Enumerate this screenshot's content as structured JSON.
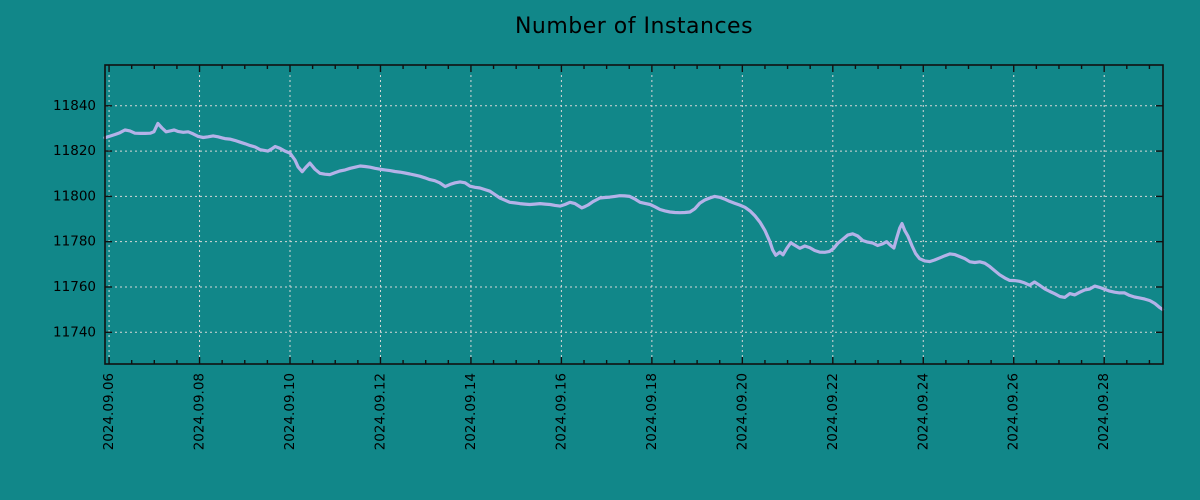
{
  "title": "Number of Instances",
  "colors": {
    "background": "#118789",
    "line": "#b4b2e8",
    "grid": "#d8d8d8",
    "axis": "#101010",
    "text": "#000000"
  },
  "chart_data": {
    "type": "line",
    "title": "Number of Instances",
    "xlabel": "",
    "ylabel": "",
    "grid": true,
    "legend": null,
    "x_unit": "days since 2024-09-06 00:00",
    "x_tick_days": [
      0,
      2,
      4,
      6,
      8,
      10,
      12,
      14,
      16,
      18,
      20,
      22
    ],
    "x_tick_labels": [
      "2024.09.06",
      "2024.09.08",
      "2024.09.10",
      "2024.09.12",
      "2024.09.14",
      "2024.09.16",
      "2024.09.18",
      "2024.09.20",
      "2024.09.22",
      "2024.09.24",
      "2024.09.26",
      "2024.09.28"
    ],
    "x_minor_step_days": 0.5,
    "y_ticks": [
      11740,
      11760,
      11780,
      11800,
      11820,
      11840
    ],
    "xlim_days": [
      -0.09,
      23.3
    ],
    "ylim": [
      11726,
      11858
    ],
    "series": [
      {
        "name": "instances",
        "points": [
          [
            -0.09,
            11825.9
          ],
          [
            0.02,
            11826.6
          ],
          [
            0.13,
            11827.3
          ],
          [
            0.24,
            11828.1
          ],
          [
            0.35,
            11829.3
          ],
          [
            0.46,
            11828.9
          ],
          [
            0.57,
            11827.9
          ],
          [
            0.69,
            11827.8
          ],
          [
            0.8,
            11827.8
          ],
          [
            0.91,
            11827.9
          ],
          [
            0.99,
            11828.5
          ],
          [
            1.08,
            11832.2
          ],
          [
            1.17,
            11830.2
          ],
          [
            1.26,
            11828.5
          ],
          [
            1.35,
            11828.9
          ],
          [
            1.44,
            11829.3
          ],
          [
            1.52,
            11828.7
          ],
          [
            1.64,
            11828.3
          ],
          [
            1.75,
            11828.5
          ],
          [
            1.86,
            11827.6
          ],
          [
            1.97,
            11826.5
          ],
          [
            2.08,
            11826.0
          ],
          [
            2.19,
            11826.3
          ],
          [
            2.3,
            11826.7
          ],
          [
            2.41,
            11826.3
          ],
          [
            2.5,
            11825.8
          ],
          [
            2.56,
            11825.5
          ],
          [
            2.67,
            11825.3
          ],
          [
            2.78,
            11824.7
          ],
          [
            2.9,
            11823.9
          ],
          [
            3.01,
            11823.2
          ],
          [
            3.12,
            11822.4
          ],
          [
            3.23,
            11821.8
          ],
          [
            3.34,
            11820.6
          ],
          [
            3.45,
            11820.2
          ],
          [
            3.51,
            11820.0
          ],
          [
            3.6,
            11821.0
          ],
          [
            3.67,
            11822.0
          ],
          [
            3.78,
            11821.2
          ],
          [
            3.89,
            11820.0
          ],
          [
            4.0,
            11819.1
          ],
          [
            4.11,
            11816.0
          ],
          [
            4.18,
            11813.0
          ],
          [
            4.27,
            11810.9
          ],
          [
            4.35,
            11812.8
          ],
          [
            4.44,
            11814.7
          ],
          [
            4.55,
            11812.0
          ],
          [
            4.66,
            11810.2
          ],
          [
            4.77,
            11809.8
          ],
          [
            4.88,
            11809.6
          ],
          [
            4.99,
            11810.4
          ],
          [
            5.1,
            11811.2
          ],
          [
            5.22,
            11811.7
          ],
          [
            5.33,
            11812.4
          ],
          [
            5.44,
            11812.9
          ],
          [
            5.55,
            11813.4
          ],
          [
            5.66,
            11813.2
          ],
          [
            5.77,
            11812.9
          ],
          [
            5.88,
            11812.4
          ],
          [
            5.99,
            11812.0
          ],
          [
            6.1,
            11811.7
          ],
          [
            6.21,
            11811.4
          ],
          [
            6.32,
            11811.0
          ],
          [
            6.43,
            11810.7
          ],
          [
            6.54,
            11810.3
          ],
          [
            6.65,
            11809.9
          ],
          [
            6.76,
            11809.4
          ],
          [
            6.87,
            11808.9
          ],
          [
            6.98,
            11808.2
          ],
          [
            7.09,
            11807.4
          ],
          [
            7.2,
            11806.9
          ],
          [
            7.31,
            11806.0
          ],
          [
            7.43,
            11804.3
          ],
          [
            7.54,
            11805.3
          ],
          [
            7.65,
            11806.0
          ],
          [
            7.76,
            11806.4
          ],
          [
            7.87,
            11806.0
          ],
          [
            7.98,
            11804.5
          ],
          [
            8.09,
            11804.0
          ],
          [
            8.2,
            11803.7
          ],
          [
            8.31,
            11803.0
          ],
          [
            8.42,
            11802.3
          ],
          [
            8.53,
            11800.8
          ],
          [
            8.64,
            11799.3
          ],
          [
            8.75,
            11798.3
          ],
          [
            8.86,
            11797.4
          ],
          [
            8.97,
            11797.1
          ],
          [
            9.08,
            11796.8
          ],
          [
            9.19,
            11796.6
          ],
          [
            9.3,
            11796.4
          ],
          [
            9.41,
            11796.6
          ],
          [
            9.53,
            11796.8
          ],
          [
            9.64,
            11796.6
          ],
          [
            9.75,
            11796.4
          ],
          [
            9.86,
            11796.0
          ],
          [
            9.97,
            11795.7
          ],
          [
            10.08,
            11796.4
          ],
          [
            10.19,
            11797.4
          ],
          [
            10.3,
            11796.8
          ],
          [
            10.45,
            11794.9
          ],
          [
            10.52,
            11795.5
          ],
          [
            10.59,
            11796.2
          ],
          [
            10.7,
            11797.7
          ],
          [
            10.79,
            11798.6
          ],
          [
            10.85,
            11799.3
          ],
          [
            10.96,
            11799.5
          ],
          [
            11.07,
            11799.7
          ],
          [
            11.18,
            11800.0
          ],
          [
            11.29,
            11800.3
          ],
          [
            11.4,
            11800.2
          ],
          [
            11.51,
            11800.0
          ],
          [
            11.62,
            11798.9
          ],
          [
            11.74,
            11797.4
          ],
          [
            11.85,
            11796.9
          ],
          [
            11.96,
            11796.4
          ],
          [
            12.07,
            11795.4
          ],
          [
            12.18,
            11794.2
          ],
          [
            12.29,
            11793.6
          ],
          [
            12.4,
            11793.1
          ],
          [
            12.51,
            11792.9
          ],
          [
            12.62,
            11792.8
          ],
          [
            12.73,
            11792.9
          ],
          [
            12.84,
            11793.1
          ],
          [
            12.95,
            11794.5
          ],
          [
            13.06,
            11797.0
          ],
          [
            13.17,
            11798.4
          ],
          [
            13.28,
            11799.3
          ],
          [
            13.39,
            11800.0
          ],
          [
            13.5,
            11799.6
          ],
          [
            13.61,
            11798.8
          ],
          [
            13.72,
            11797.8
          ],
          [
            13.83,
            11797.0
          ],
          [
            13.94,
            11796.2
          ],
          [
            14.06,
            11795.2
          ],
          [
            14.17,
            11793.6
          ],
          [
            14.28,
            11791.4
          ],
          [
            14.39,
            11788.6
          ],
          [
            14.5,
            11785.0
          ],
          [
            14.61,
            11780.0
          ],
          [
            14.67,
            11776.4
          ],
          [
            14.74,
            11774.0
          ],
          [
            14.83,
            11775.4
          ],
          [
            14.9,
            11774.2
          ],
          [
            14.98,
            11777.0
          ],
          [
            15.07,
            11779.5
          ],
          [
            15.16,
            11778.4
          ],
          [
            15.27,
            11777.1
          ],
          [
            15.38,
            11778.1
          ],
          [
            15.49,
            11777.4
          ],
          [
            15.6,
            11776.1
          ],
          [
            15.71,
            11775.4
          ],
          [
            15.82,
            11775.3
          ],
          [
            15.93,
            11775.7
          ],
          [
            16.02,
            11777.1
          ],
          [
            16.11,
            11779.3
          ],
          [
            16.22,
            11781.1
          ],
          [
            16.33,
            11782.9
          ],
          [
            16.44,
            11783.5
          ],
          [
            16.55,
            11782.5
          ],
          [
            16.66,
            11780.5
          ],
          [
            16.77,
            11779.8
          ],
          [
            16.88,
            11779.4
          ],
          [
            16.99,
            11778.3
          ],
          [
            17.1,
            11779.0
          ],
          [
            17.19,
            11780.0
          ],
          [
            17.28,
            11778.3
          ],
          [
            17.35,
            11777.2
          ],
          [
            17.41,
            11781.5
          ],
          [
            17.48,
            11786.0
          ],
          [
            17.53,
            11788.0
          ],
          [
            17.59,
            11785.0
          ],
          [
            17.66,
            11782.5
          ],
          [
            17.75,
            11778.2
          ],
          [
            17.83,
            11774.8
          ],
          [
            17.92,
            11772.5
          ],
          [
            18.03,
            11771.5
          ],
          [
            18.14,
            11771.2
          ],
          [
            18.25,
            11771.9
          ],
          [
            18.37,
            11772.9
          ],
          [
            18.48,
            11773.8
          ],
          [
            18.59,
            11774.6
          ],
          [
            18.7,
            11774.3
          ],
          [
            18.81,
            11773.4
          ],
          [
            18.92,
            11772.5
          ],
          [
            19.03,
            11771.1
          ],
          [
            19.14,
            11770.8
          ],
          [
            19.25,
            11771.1
          ],
          [
            19.36,
            11770.5
          ],
          [
            19.47,
            11769.0
          ],
          [
            19.58,
            11767.2
          ],
          [
            19.69,
            11765.4
          ],
          [
            19.8,
            11764.0
          ],
          [
            19.91,
            11762.9
          ],
          [
            20.02,
            11762.8
          ],
          [
            20.13,
            11762.5
          ],
          [
            20.24,
            11761.8
          ],
          [
            20.35,
            11760.8
          ],
          [
            20.46,
            11762.2
          ],
          [
            20.57,
            11760.8
          ],
          [
            20.69,
            11759.1
          ],
          [
            20.8,
            11758.0
          ],
          [
            20.91,
            11757.0
          ],
          [
            21.02,
            11755.8
          ],
          [
            21.13,
            11755.4
          ],
          [
            21.24,
            11757.1
          ],
          [
            21.35,
            11756.5
          ],
          [
            21.46,
            11757.7
          ],
          [
            21.57,
            11758.7
          ],
          [
            21.68,
            11759.1
          ],
          [
            21.79,
            11760.4
          ],
          [
            21.9,
            11759.8
          ],
          [
            22.01,
            11759.0
          ],
          [
            22.12,
            11758.2
          ],
          [
            22.23,
            11757.7
          ],
          [
            22.34,
            11757.4
          ],
          [
            22.45,
            11757.4
          ],
          [
            22.56,
            11756.3
          ],
          [
            22.67,
            11755.6
          ],
          [
            22.78,
            11755.2
          ],
          [
            22.89,
            11754.7
          ],
          [
            23.01,
            11754.0
          ],
          [
            23.12,
            11752.7
          ],
          [
            23.23,
            11750.9
          ],
          [
            23.29,
            11750.1
          ]
        ]
      }
    ]
  }
}
